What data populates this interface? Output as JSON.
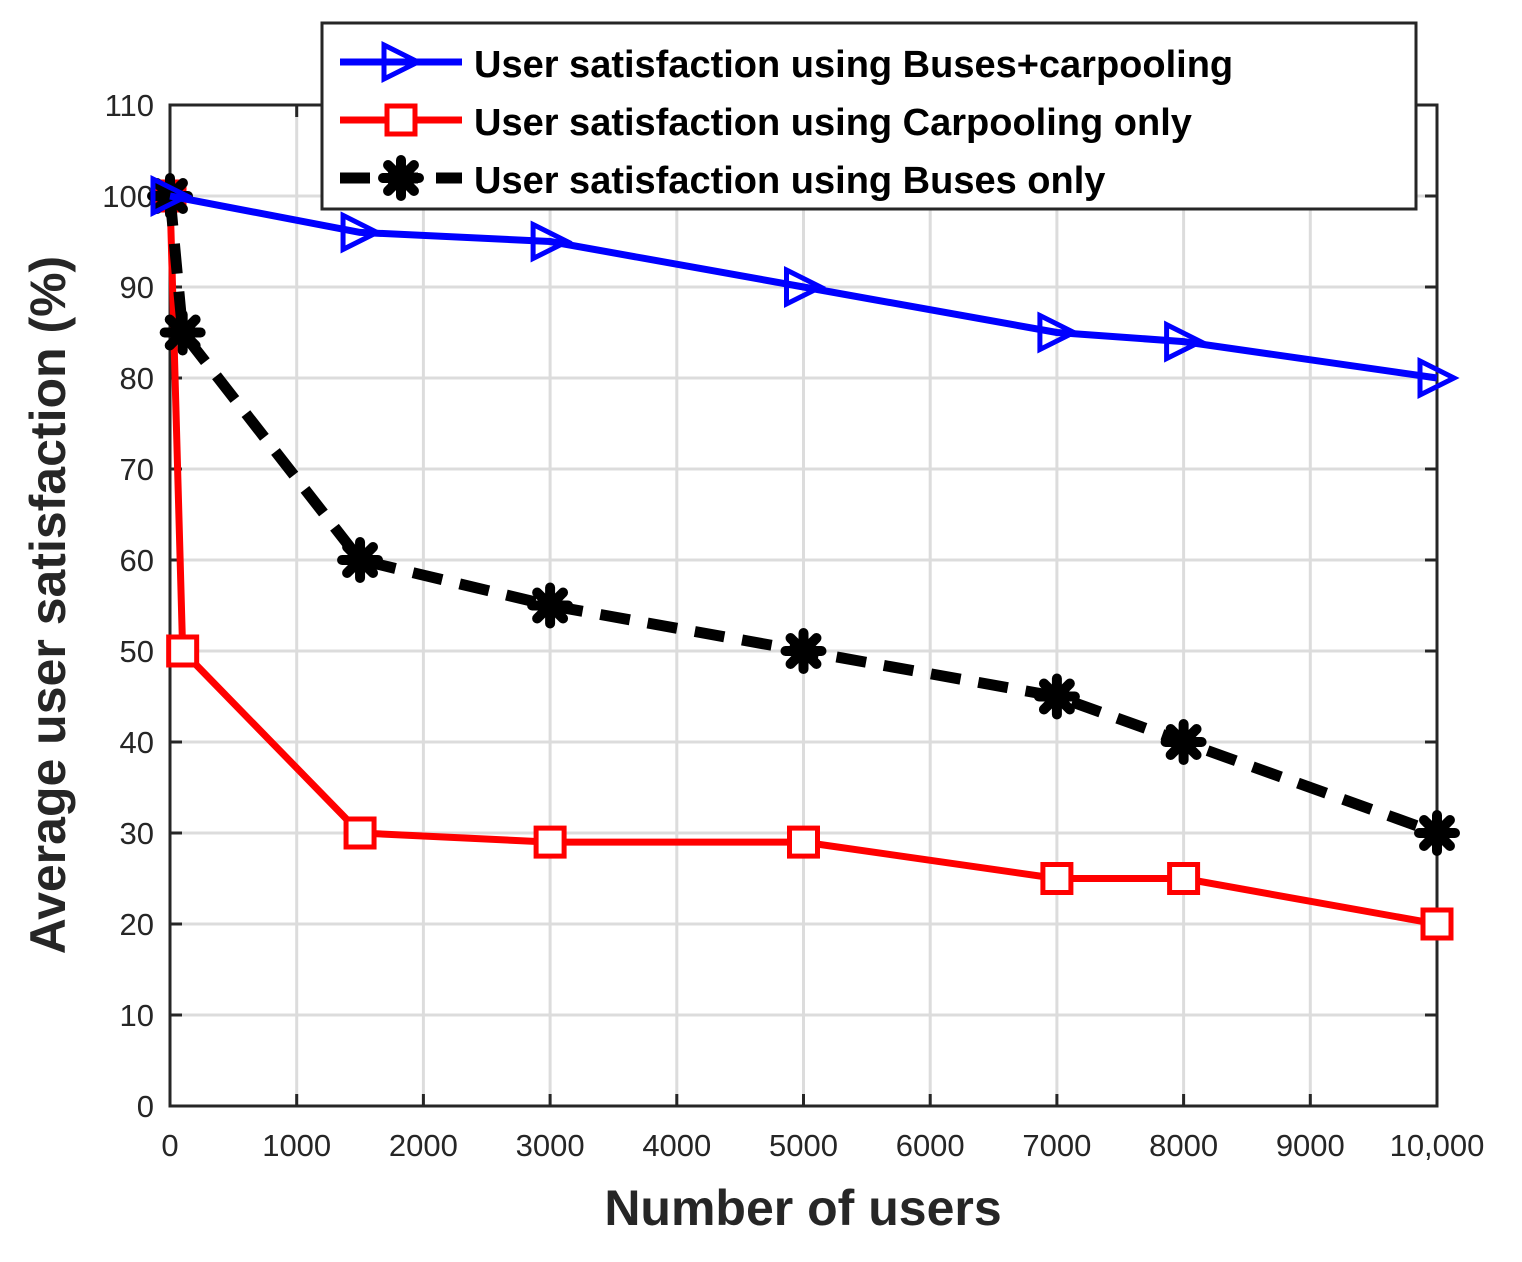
{
  "chart_data": {
    "type": "line",
    "title": "",
    "xlabel": "Number of users",
    "ylabel": "Average user satisfaction (%)",
    "xlim": [
      0,
      10000
    ],
    "ylim": [
      0,
      110
    ],
    "x_ticks": [
      {
        "value": 0,
        "label": "0"
      },
      {
        "value": 1000,
        "label": "1000"
      },
      {
        "value": 2000,
        "label": "2000"
      },
      {
        "value": 3000,
        "label": "3000"
      },
      {
        "value": 4000,
        "label": "4000"
      },
      {
        "value": 5000,
        "label": "5000"
      },
      {
        "value": 6000,
        "label": "6000"
      },
      {
        "value": 7000,
        "label": "7000"
      },
      {
        "value": 8000,
        "label": "8000"
      },
      {
        "value": 9000,
        "label": "9000"
      },
      {
        "value": 10000,
        "label": "10,000"
      }
    ],
    "y_ticks": [
      {
        "value": 0,
        "label": "0"
      },
      {
        "value": 10,
        "label": "10"
      },
      {
        "value": 20,
        "label": "20"
      },
      {
        "value": 30,
        "label": "30"
      },
      {
        "value": 40,
        "label": "40"
      },
      {
        "value": 50,
        "label": "50"
      },
      {
        "value": 60,
        "label": "60"
      },
      {
        "value": 70,
        "label": "70"
      },
      {
        "value": 80,
        "label": "80"
      },
      {
        "value": 90,
        "label": "90"
      },
      {
        "value": 100,
        "label": "100"
      },
      {
        "value": 110,
        "label": "110"
      }
    ],
    "grid": true,
    "legend_position": "top-right",
    "series": [
      {
        "name": "User satisfaction using Buses+carpooling",
        "color": "#0000ff",
        "marker": "triangle-right",
        "line_style": "solid",
        "x": [
          0,
          1500,
          3000,
          5000,
          7000,
          8000,
          10000
        ],
        "values": [
          100,
          96,
          95,
          90,
          85,
          84,
          80
        ]
      },
      {
        "name": "User satisfaction using Carpooling only",
        "color": "#ff0000",
        "marker": "square",
        "line_style": "solid",
        "x": [
          0,
          100,
          1500,
          3000,
          5000,
          7000,
          8000,
          10000
        ],
        "values": [
          100,
          50,
          30,
          29,
          29,
          25,
          25,
          20
        ]
      },
      {
        "name": "User satisfaction using Buses only",
        "color": "#000000",
        "marker": "asterisk",
        "line_style": "dashed",
        "x": [
          0,
          100,
          1500,
          3000,
          5000,
          7000,
          8000,
          10000
        ],
        "values": [
          100,
          85,
          60,
          55,
          50,
          45,
          40,
          30
        ]
      }
    ]
  }
}
